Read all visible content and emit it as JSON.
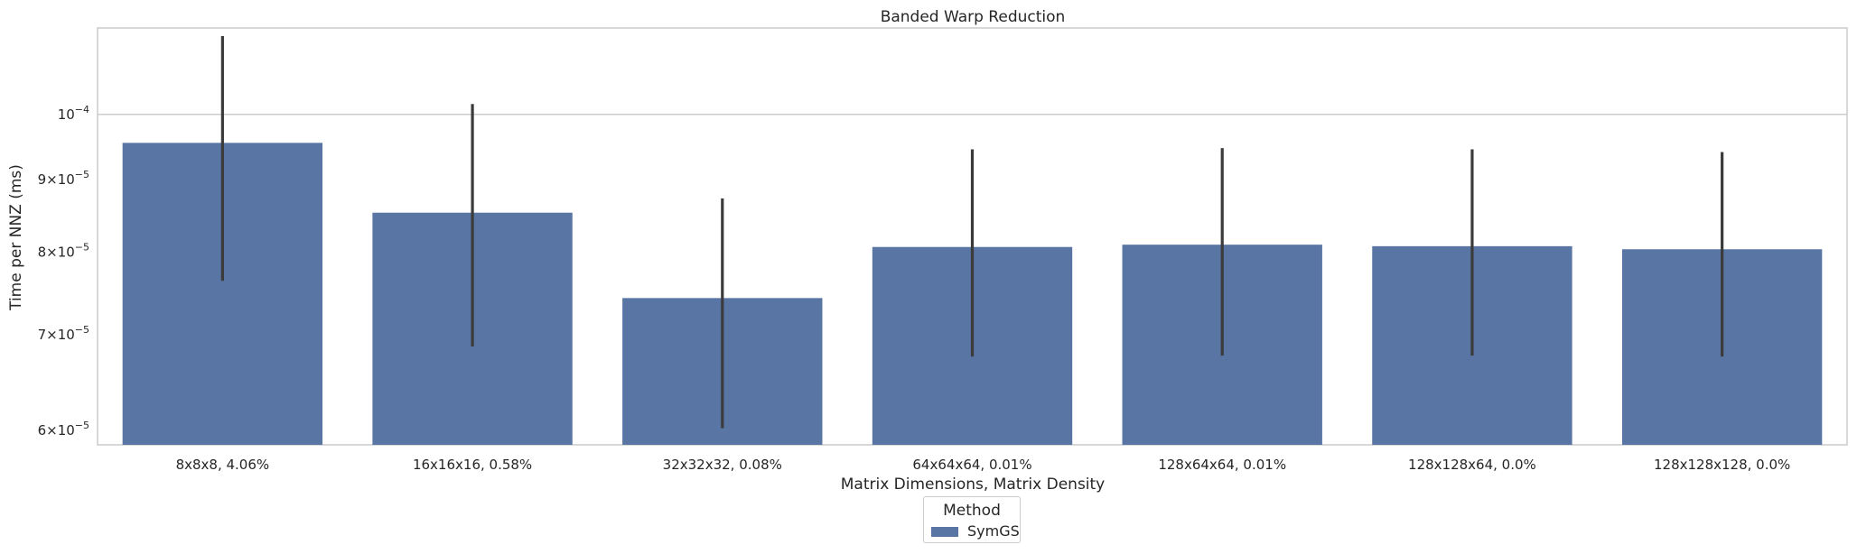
{
  "chart_data": {
    "type": "bar",
    "title": "Banded Warp Reduction",
    "xlabel": "Matrix Dimensions, Matrix Density",
    "ylabel": "Time per NNZ (ms)",
    "yscale": "log",
    "ylim": [
      5.86e-05,
      0.000115
    ],
    "yticks": [
      {
        "value": 6e-05,
        "mantissa": "6",
        "exponent": "−5"
      },
      {
        "value": 7e-05,
        "mantissa": "7",
        "exponent": "−5"
      },
      {
        "value": 8e-05,
        "mantissa": "8",
        "exponent": "−5"
      },
      {
        "value": 9e-05,
        "mantissa": "9",
        "exponent": "−5"
      },
      {
        "value": 0.0001,
        "mantissa": "",
        "exponent": "−4"
      }
    ],
    "grid": "horizontal",
    "categories": [
      "8x8x8, 4.06%",
      "16x16x16, 0.58%",
      "32x32x32, 0.08%",
      "64x64x64, 0.01%",
      "128x64x64, 0.01%",
      "128x128x64, 0.0%",
      "128x128x128, 0.0%"
    ],
    "series": [
      {
        "name": "SymGS",
        "color": "#5975a4",
        "values": [
          9.55e-05,
          8.53e-05,
          7.43e-05,
          8.07e-05,
          8.1e-05,
          8.08e-05,
          8.04e-05
        ],
        "ci_low": [
          7.64e-05,
          6.87e-05,
          6.02e-05,
          6.76e-05,
          6.77e-05,
          6.77e-05,
          6.76e-05
        ],
        "ci_high": [
          0.0001135,
          0.0001017,
          8.73e-05,
          9.45e-05,
          9.47e-05,
          9.45e-05,
          9.41e-05
        ]
      }
    ],
    "legend": {
      "title": "Method",
      "position": "bottom-center"
    }
  }
}
